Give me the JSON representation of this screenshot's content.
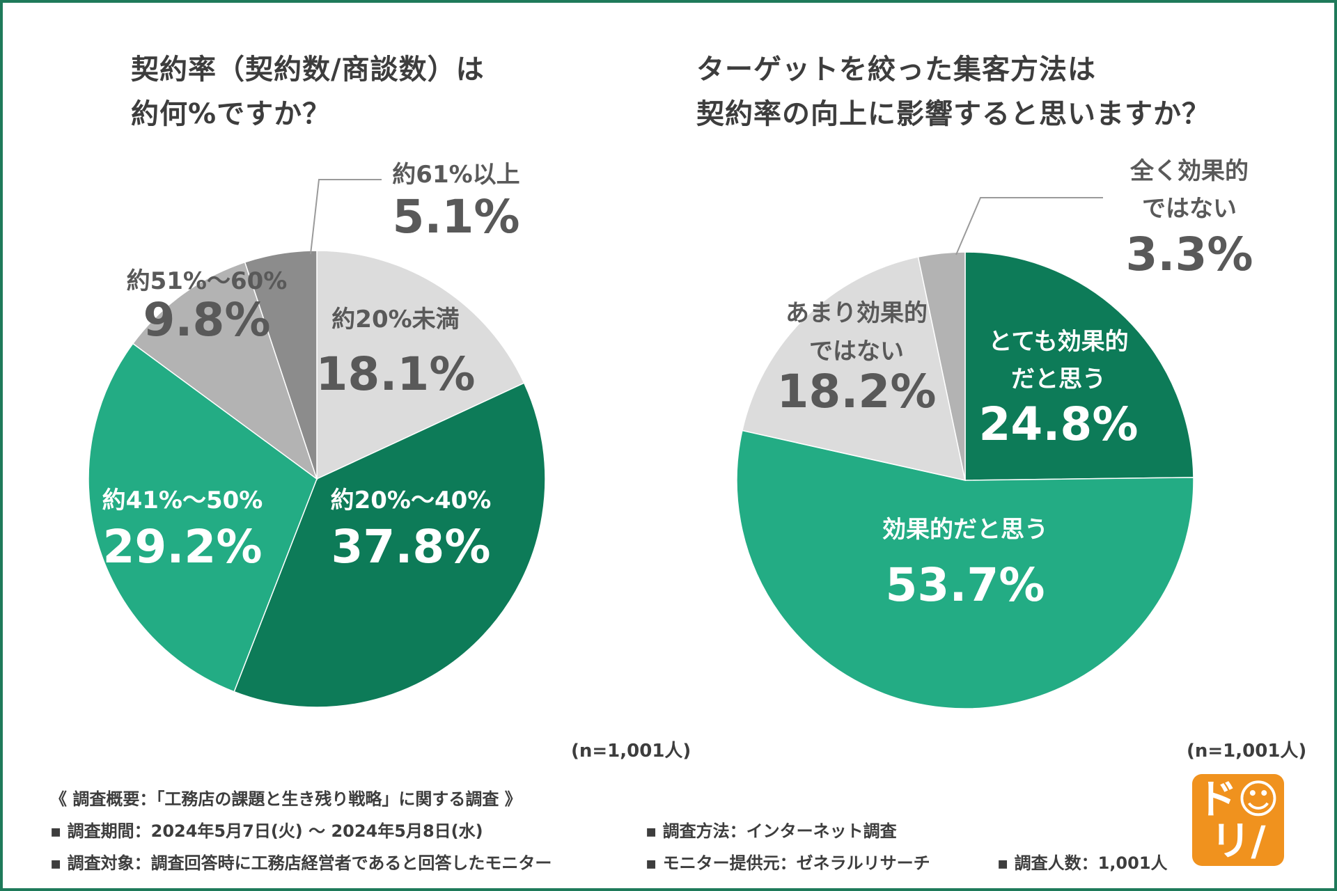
{
  "colors": {
    "frame": "#1f7a5a",
    "dark_green": "#0d7b58",
    "green": "#23ac84",
    "light_gray": "#dcdcdc",
    "mid_gray": "#b3b3b3",
    "dark_gray": "#8c8c8c",
    "text_gray": "#595959",
    "white": "#ffffff",
    "logo": "#f0921e"
  },
  "chart_data": [
    {
      "type": "pie",
      "title": [
        "契約率（契約数/商談数）は",
        "約何%ですか？"
      ],
      "note": "(n=1,001人)",
      "slices": [
        {
          "label": [
            "約20%未満"
          ],
          "value": 18.1,
          "value_label": "18.1%",
          "color": "#dcdcdc",
          "text_color": "#595959"
        },
        {
          "label": [
            "約20%〜40%"
          ],
          "value": 37.8,
          "value_label": "37.8%",
          "color": "#0d7b58",
          "text_color": "#ffffff"
        },
        {
          "label": [
            "約41%〜50%"
          ],
          "value": 29.2,
          "value_label": "29.2%",
          "color": "#23ac84",
          "text_color": "#ffffff"
        },
        {
          "label": [
            "約51%〜60%"
          ],
          "value": 9.8,
          "value_label": "9.8%",
          "color": "#b3b3b3",
          "text_color": "#595959"
        },
        {
          "label": [
            "約61%以上"
          ],
          "value": 5.1,
          "value_label": "5.1%",
          "color": "#8c8c8c",
          "text_color": "#595959"
        }
      ]
    },
    {
      "type": "pie",
      "title": [
        "ターゲットを絞った集客方法は",
        "契約率の向上に影響すると思いますか？"
      ],
      "note": "(n=1,001人)",
      "slices": [
        {
          "label": [
            "とても効果的",
            "だと思う"
          ],
          "value": 24.8,
          "value_label": "24.8%",
          "color": "#0d7b58",
          "text_color": "#ffffff"
        },
        {
          "label": [
            "効果的だと思う"
          ],
          "value": 53.7,
          "value_label": "53.7%",
          "color": "#23ac84",
          "text_color": "#ffffff"
        },
        {
          "label": [
            "あまり効果的",
            "ではない"
          ],
          "value": 18.2,
          "value_label": "18.2%",
          "color": "#dcdcdc",
          "text_color": "#595959"
        },
        {
          "label": [
            "全く効果的",
            "ではない"
          ],
          "value": 3.3,
          "value_label": "3.3%",
          "color": "#b3b3b3",
          "text_color": "#595959"
        }
      ]
    }
  ],
  "survey": {
    "heading": "《 調査概要：「工務店の課題と生き残り戦略」に関する調査 》",
    "period": "▪ 調査期間：2024年5月7日(火) 〜 2024年5月8日(水)",
    "method": "▪ 調査方法：インターネット調査",
    "target": "▪ 調査対象：調査回答時に工務店経営者であると回答したモニター",
    "provider": "▪ モニター提供元：ゼネラルリサーチ",
    "count": "▪ 調査人数：1,001人"
  },
  "logo": {
    "line1": "ド☺",
    "line2": "リ/"
  }
}
